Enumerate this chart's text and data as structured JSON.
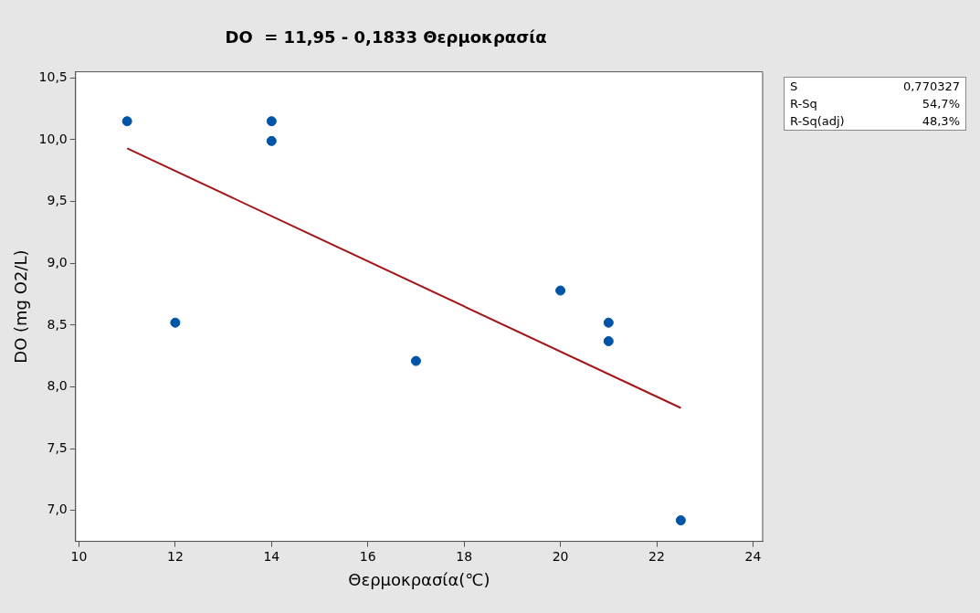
{
  "chart_data": {
    "type": "scatter",
    "title": "DO  = 11,95 - 0,1833 Θερμοκρασία",
    "xlabel": "Θερμοκρασία(℃)",
    "ylabel": "DO (mg O2/L)",
    "annotations": [
      "S 0,770327",
      "R-Sq 54,7%",
      "R-Sq(adj) 48,3%"
    ],
    "x": [
      11,
      14,
      14,
      12,
      17,
      20,
      21,
      21,
      22.5
    ],
    "series": [
      {
        "color": "#0054a6",
        "values": [
          10.15,
          10.15,
          9.99,
          8.52,
          8.21,
          8.78,
          8.52,
          8.37,
          6.92
        ],
        "marker": "circle"
      },
      {
        "type": "line",
        "color": "#a3171b",
        "x": [
          11,
          22.5
        ],
        "values": [
          9.93,
          7.83
        ],
        "marker": "none"
      }
    ],
    "xlim": [
      9.93,
      24.2
    ],
    "xticks": [
      10,
      12,
      14,
      16,
      18,
      20,
      22,
      24
    ],
    "ylim": [
      6.75,
      10.55
    ],
    "yticks": [
      {
        "value": 7,
        "label": "7,0"
      },
      {
        "value": 7.5,
        "label": "7,5"
      },
      {
        "value": 8,
        "label": "8,0"
      },
      {
        "value": 8.5,
        "label": "8,5"
      },
      {
        "value": 9,
        "label": "9,0"
      },
      {
        "value": 9.5,
        "label": "9,5"
      },
      {
        "value": 10,
        "label": "10,0"
      },
      {
        "value": 10.5,
        "label": "10,5"
      }
    ],
    "grid": false,
    "legend": false
  }
}
